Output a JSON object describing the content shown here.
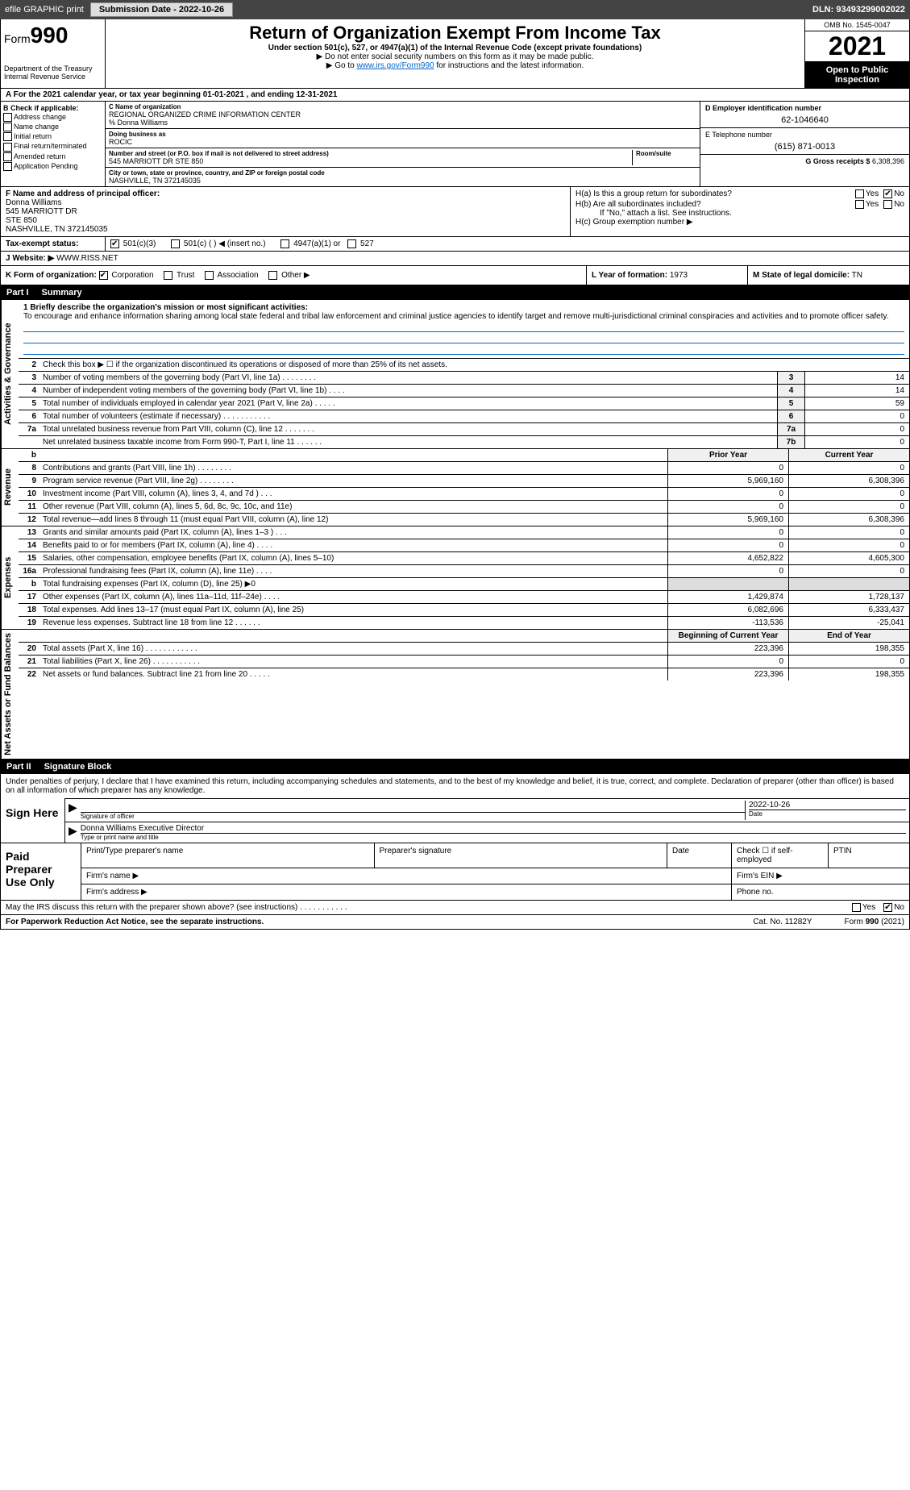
{
  "topbar": {
    "efile": "efile GRAPHIC print",
    "submission": "Submission Date - 2022-10-26",
    "dln": "DLN: 93493299002022"
  },
  "header": {
    "form_label": "Form",
    "form_num": "990",
    "dept": "Department of the Treasury",
    "irs": "Internal Revenue Service",
    "title": "Return of Organization Exempt From Income Tax",
    "subtitle": "Under section 501(c), 527, or 4947(a)(1) of the Internal Revenue Code (except private foundations)",
    "note1": "▶ Do not enter social security numbers on this form as it may be made public.",
    "note2": "▶ Go to www.irs.gov/Form990 for instructions and the latest information.",
    "link": "www.irs.gov/Form990",
    "omb": "OMB No. 1545-0047",
    "year": "2021",
    "open": "Open to Public Inspection"
  },
  "row_a": "For the 2021 calendar year, or tax year beginning 01-01-2021    , and ending 12-31-2021",
  "section_b": {
    "label": "B Check if applicable:",
    "items": [
      "Address change",
      "Name change",
      "Initial return",
      "Final return/terminated",
      "Amended return",
      "Application Pending"
    ]
  },
  "section_c": {
    "name_lbl": "C Name of organization",
    "name": "REGIONAL ORGANIZED CRIME INFORMATION CENTER",
    "care_of": "% Donna Williams",
    "dba_lbl": "Doing business as",
    "dba": "ROCIC",
    "addr_lbl": "Number and street (or P.O. box if mail is not delivered to street address)",
    "room_lbl": "Room/suite",
    "addr": "545 MARRIOTT DR STE 850",
    "city_lbl": "City or town, state or province, country, and ZIP or foreign postal code",
    "city": "NASHVILLE, TN  372145035"
  },
  "section_d": {
    "ein_lbl": "D Employer identification number",
    "ein": "62-1046640",
    "tel_lbl": "E Telephone number",
    "tel": "(615) 871-0013",
    "gross_lbl": "G Gross receipts $",
    "gross": "6,308,396"
  },
  "section_f": {
    "lbl": "F  Name and address of principal officer:",
    "name": "Donna Williams",
    "addr1": "545 MARRIOTT DR",
    "addr2": "STE 850",
    "city": "NASHVILLE, TN  372145035"
  },
  "section_h": {
    "ha": "H(a)  Is this a group return for subordinates?",
    "hb": "H(b)  Are all subordinates included?",
    "hb_note": "If \"No,\" attach a list. See instructions.",
    "hc": "H(c)  Group exemption number ▶",
    "yes": "Yes",
    "no": "No"
  },
  "section_i": {
    "lbl": "Tax-exempt status:",
    "opts": [
      "501(c)(3)",
      "501(c) (  ) ◀ (insert no.)",
      "4947(a)(1) or",
      "527"
    ]
  },
  "section_j": {
    "lbl": "Website: ▶",
    "val": "WWW.RISS.NET"
  },
  "section_k": {
    "lbl": "K Form of organization:",
    "opts": [
      "Corporation",
      "Trust",
      "Association",
      "Other ▶"
    ]
  },
  "section_l": {
    "lbl": "L Year of formation:",
    "val": "1973"
  },
  "section_m": {
    "lbl": "M State of legal domicile:",
    "val": "TN"
  },
  "part1": {
    "hdr": "Part I",
    "title": "Summary",
    "line1_lbl": "1  Briefly describe the organization's mission or most significant activities:",
    "mission": "To encourage and enhance information sharing among local state federal and tribal law enforcement and criminal justice agencies to identify target and remove multi-jurisdictional criminal conspiracies and activities and to promote officer safety.",
    "line2": "Check this box ▶ ☐  if the organization discontinued its operations or disposed of more than 25% of its net assets.",
    "rows_gov": [
      {
        "n": "3",
        "t": "Number of voting members of the governing body (Part VI, line 1a)  .   .   .   .   .   .   .   .",
        "b": "3",
        "v": "14"
      },
      {
        "n": "4",
        "t": "Number of independent voting members of the governing body (Part VI, line 1b)  .   .   .   .",
        "b": "4",
        "v": "14"
      },
      {
        "n": "5",
        "t": "Total number of individuals employed in calendar year 2021 (Part V, line 2a)  .   .   .   .   .",
        "b": "5",
        "v": "59"
      },
      {
        "n": "6",
        "t": "Total number of volunteers (estimate if necessary)   .   .   .   .   .   .   .   .   .   .   .",
        "b": "6",
        "v": "0"
      },
      {
        "n": "7a",
        "t": "Total unrelated business revenue from Part VIII, column (C), line 12  .   .   .   .   .   .   .",
        "b": "7a",
        "v": "0"
      },
      {
        "n": "",
        "t": "Net unrelated business taxable income from Form 990-T, Part I, line 11  .   .   .   .   .   .",
        "b": "7b",
        "v": "0"
      }
    ],
    "col_py": "Prior Year",
    "col_cy": "Current Year",
    "rows_rev": [
      {
        "n": "8",
        "t": "Contributions and grants (Part VIII, line 1h)  .   .   .   .   .   .   .   .",
        "py": "0",
        "cy": "0"
      },
      {
        "n": "9",
        "t": "Program service revenue (Part VIII, line 2g)  .   .   .   .   .   .   .   .",
        "py": "5,969,160",
        "cy": "6,308,396"
      },
      {
        "n": "10",
        "t": "Investment income (Part VIII, column (A), lines 3, 4, and 7d )  .   .   .",
        "py": "0",
        "cy": "0"
      },
      {
        "n": "11",
        "t": "Other revenue (Part VIII, column (A), lines 5, 6d, 8c, 9c, 10c, and 11e)",
        "py": "0",
        "cy": "0"
      },
      {
        "n": "12",
        "t": "Total revenue—add lines 8 through 11 (must equal Part VIII, column (A), line 12)",
        "py": "5,969,160",
        "cy": "6,308,396"
      }
    ],
    "rows_exp": [
      {
        "n": "13",
        "t": "Grants and similar amounts paid (Part IX, column (A), lines 1–3 )  .   .   .",
        "py": "0",
        "cy": "0"
      },
      {
        "n": "14",
        "t": "Benefits paid to or for members (Part IX, column (A), line 4)  .   .   .   .",
        "py": "0",
        "cy": "0"
      },
      {
        "n": "15",
        "t": "Salaries, other compensation, employee benefits (Part IX, column (A), lines 5–10)",
        "py": "4,652,822",
        "cy": "4,605,300"
      },
      {
        "n": "16a",
        "t": "Professional fundraising fees (Part IX, column (A), line 11e)  .   .   .   .",
        "py": "0",
        "cy": "0"
      },
      {
        "n": "b",
        "t": "Total fundraising expenses (Part IX, column (D), line 25) ▶0",
        "py": "",
        "cy": ""
      },
      {
        "n": "17",
        "t": "Other expenses (Part IX, column (A), lines 11a–11d, 11f–24e)  .   .   .   .",
        "py": "1,429,874",
        "cy": "1,728,137"
      },
      {
        "n": "18",
        "t": "Total expenses. Add lines 13–17 (must equal Part IX, column (A), line 25)",
        "py": "6,082,696",
        "cy": "6,333,437"
      },
      {
        "n": "19",
        "t": "Revenue less expenses. Subtract line 18 from line 12  .   .   .   .   .   .",
        "py": "-113,536",
        "cy": "-25,041"
      }
    ],
    "col_boy": "Beginning of Current Year",
    "col_eoy": "End of Year",
    "rows_net": [
      {
        "n": "20",
        "t": "Total assets (Part X, line 16)  .   .   .   .   .   .   .   .   .   .   .   .",
        "py": "223,396",
        "cy": "198,355"
      },
      {
        "n": "21",
        "t": "Total liabilities (Part X, line 26)  .   .   .   .   .   .   .   .   .   .   .",
        "py": "0",
        "cy": "0"
      },
      {
        "n": "22",
        "t": "Net assets or fund balances. Subtract line 21 from line 20  .   .   .   .   .",
        "py": "223,396",
        "cy": "198,355"
      }
    ],
    "tab_gov": "Activities & Governance",
    "tab_rev": "Revenue",
    "tab_exp": "Expenses",
    "tab_net": "Net Assets or Fund Balances"
  },
  "part2": {
    "hdr": "Part II",
    "title": "Signature Block",
    "decl": "Under penalties of perjury, I declare that I have examined this return, including accompanying schedules and statements, and to the best of my knowledge and belief, it is true, correct, and complete. Declaration of preparer (other than officer) is based on all information of which preparer has any knowledge.",
    "sign_here": "Sign Here",
    "sig_officer": "Signature of officer",
    "date": "Date",
    "sig_date": "2022-10-26",
    "name_title": "Donna Williams  Executive Director",
    "name_title_lbl": "Type or print name and title",
    "paid": "Paid Preparer Use Only",
    "prep_name": "Print/Type preparer's name",
    "prep_sig": "Preparer's signature",
    "prep_date": "Date",
    "self_emp": "Check ☐ if self-employed",
    "ptin": "PTIN",
    "firm_name": "Firm's name   ▶",
    "firm_ein": "Firm's EIN ▶",
    "firm_addr": "Firm's address ▶",
    "phone": "Phone no."
  },
  "discuss": {
    "txt": "May the IRS discuss this return with the preparer shown above? (see instructions)  .   .   .   .   .   .   .   .   .   .   .",
    "yes": "Yes",
    "no": "No"
  },
  "footer": {
    "left": "For Paperwork Reduction Act Notice, see the separate instructions.",
    "mid": "Cat. No. 11282Y",
    "right": "Form 990 (2021)"
  },
  "colors": {
    "link": "#0066cc",
    "dark": "#000000",
    "topbar": "#444444"
  }
}
